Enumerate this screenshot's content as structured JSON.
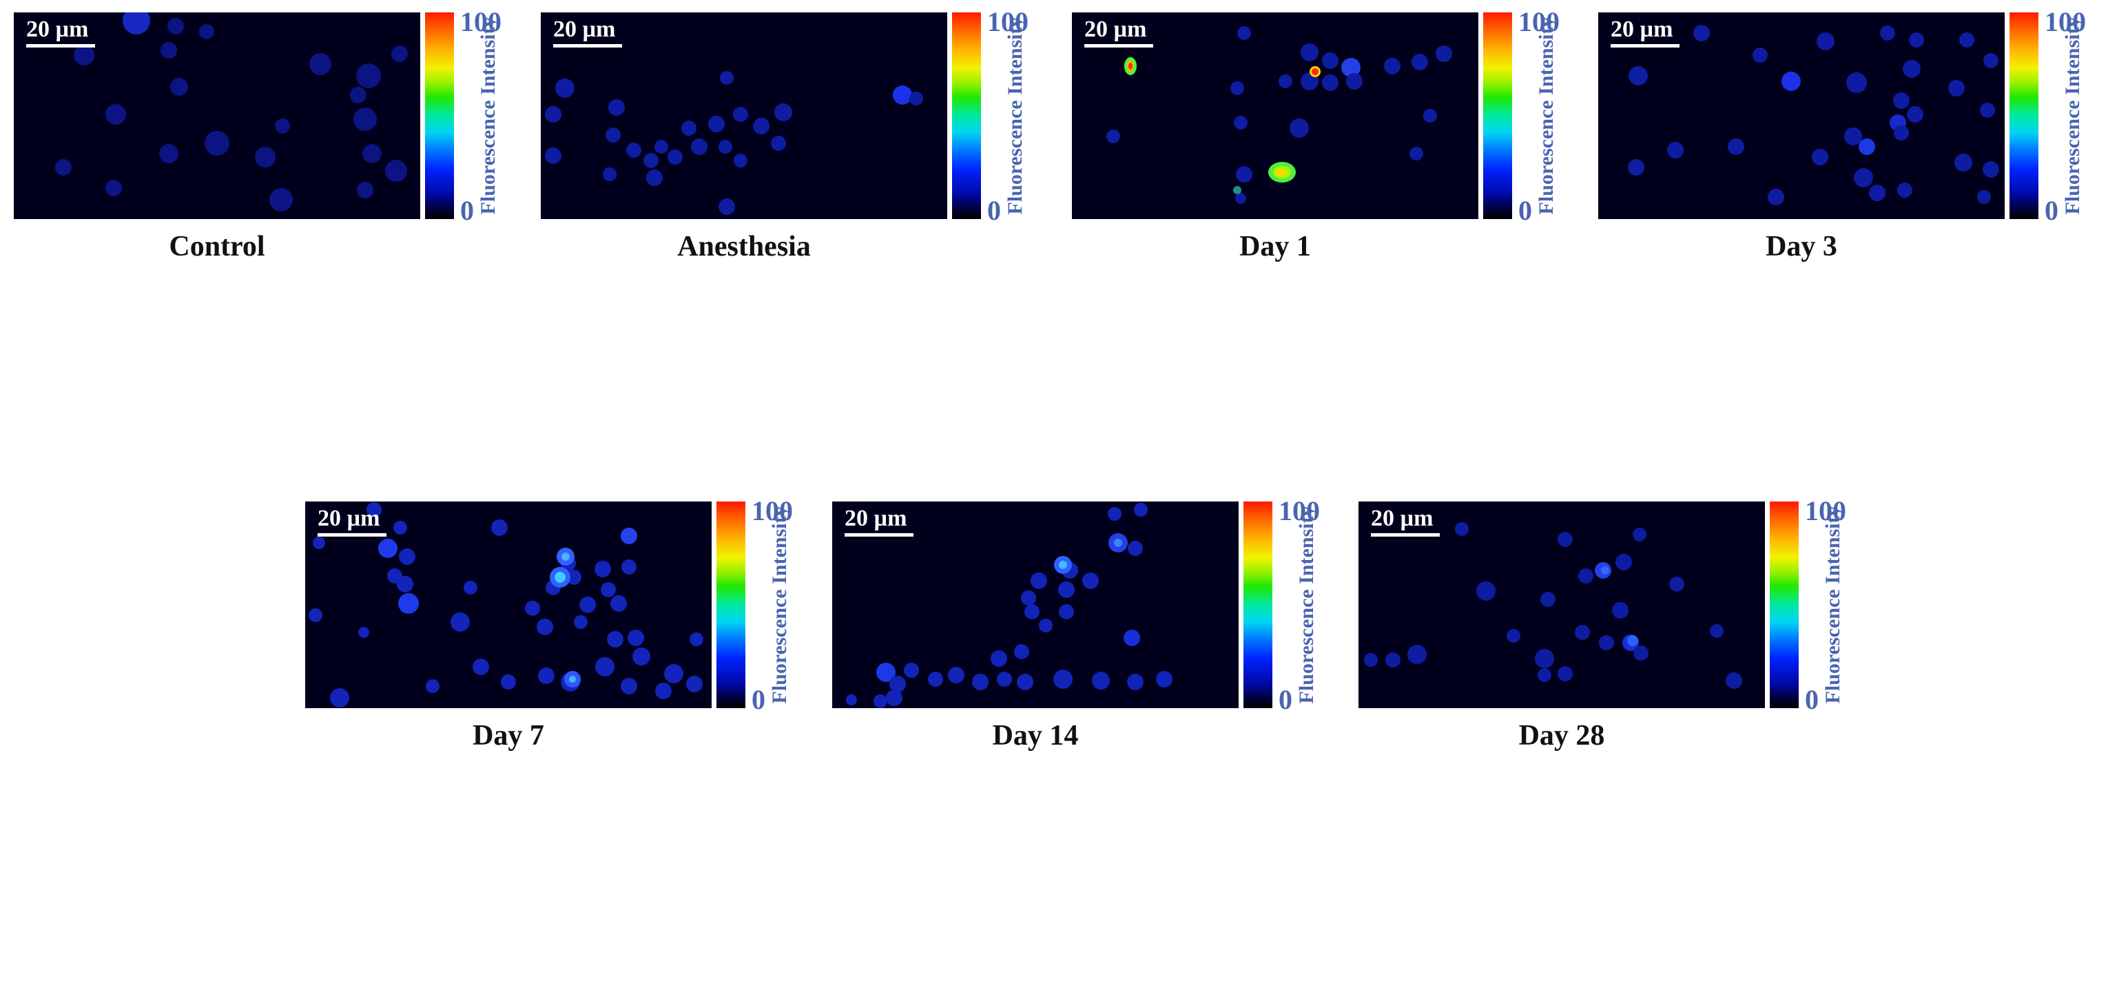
{
  "scale_bar": "20 µm",
  "colorbar": {
    "label": "Fluorescence Intensity",
    "max": "100",
    "min": "0"
  },
  "panels": [
    {
      "caption": "Control"
    },
    {
      "caption": "Anesthesia"
    },
    {
      "caption": "Day 1"
    },
    {
      "caption": "Day 3"
    },
    {
      "caption": "Day 7"
    },
    {
      "caption": "Day 14"
    },
    {
      "caption": "Day 28"
    }
  ],
  "colors": {
    "background": "#00001c",
    "cell_dim": "#10189a",
    "cell_bright": "#2a48ff",
    "hotspot_red": "#ff2a00",
    "hotspot_green": "#6cf000",
    "tick_text": "#4a64b0"
  }
}
